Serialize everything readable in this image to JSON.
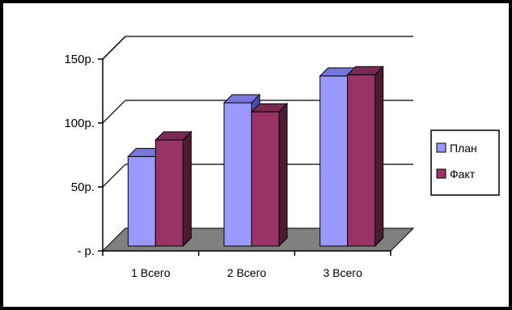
{
  "chart_data": {
    "type": "bar",
    "title": "",
    "xlabel": "",
    "ylabel": "",
    "categories": [
      "1 Всего",
      "2 Всего",
      "3 Всего"
    ],
    "series": [
      {
        "name": "План",
        "values": [
          70,
          112,
          133
        ]
      },
      {
        "name": "Факт",
        "values": [
          83,
          105,
          134
        ]
      }
    ],
    "ylim": [
      0,
      150
    ],
    "yticks": [
      {
        "value": 0,
        "label": "- р."
      },
      {
        "value": 50,
        "label": "50р."
      },
      {
        "value": 100,
        "label": "100р."
      },
      {
        "value": 150,
        "label": "150р."
      }
    ],
    "grid": true,
    "legend_position": "right",
    "colors": {
      "plan_front": "#9999ff",
      "plan_side": "#4d4db3",
      "plan_top": "#7777dd",
      "fact_front": "#993366",
      "fact_side": "#4d1a33",
      "fact_top": "#7a2952",
      "floor": "#808080",
      "border": "#000000"
    }
  }
}
